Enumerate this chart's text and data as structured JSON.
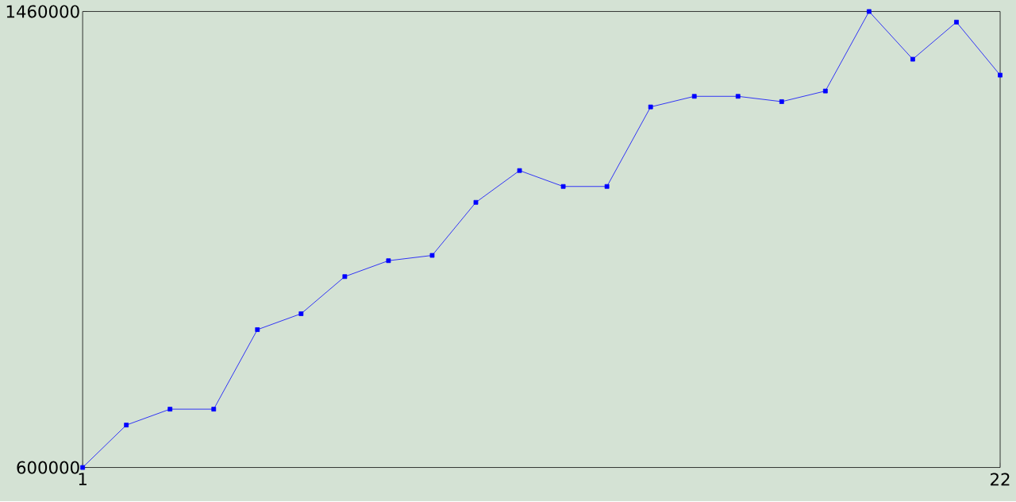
{
  "chart_data": {
    "type": "line",
    "x": [
      1,
      2,
      3,
      4,
      5,
      6,
      7,
      8,
      9,
      10,
      11,
      12,
      13,
      14,
      15,
      16,
      17,
      18,
      19,
      20,
      21,
      22
    ],
    "series": [
      {
        "color": "#0000ff",
        "values": [
          600000,
          680000,
          710000,
          710000,
          860000,
          890000,
          960000,
          990000,
          1000000,
          1100000,
          1160000,
          1130000,
          1130000,
          1280000,
          1300000,
          1300000,
          1290000,
          1310000,
          1460000,
          1370000,
          1440000,
          1340000
        ]
      }
    ],
    "xlim": [
      1,
      22
    ],
    "ylim": [
      600000,
      1460000
    ],
    "xticks": [
      1,
      22
    ],
    "yticks": [
      600000,
      1460000
    ],
    "marker": "square",
    "line_style": "solid"
  }
}
